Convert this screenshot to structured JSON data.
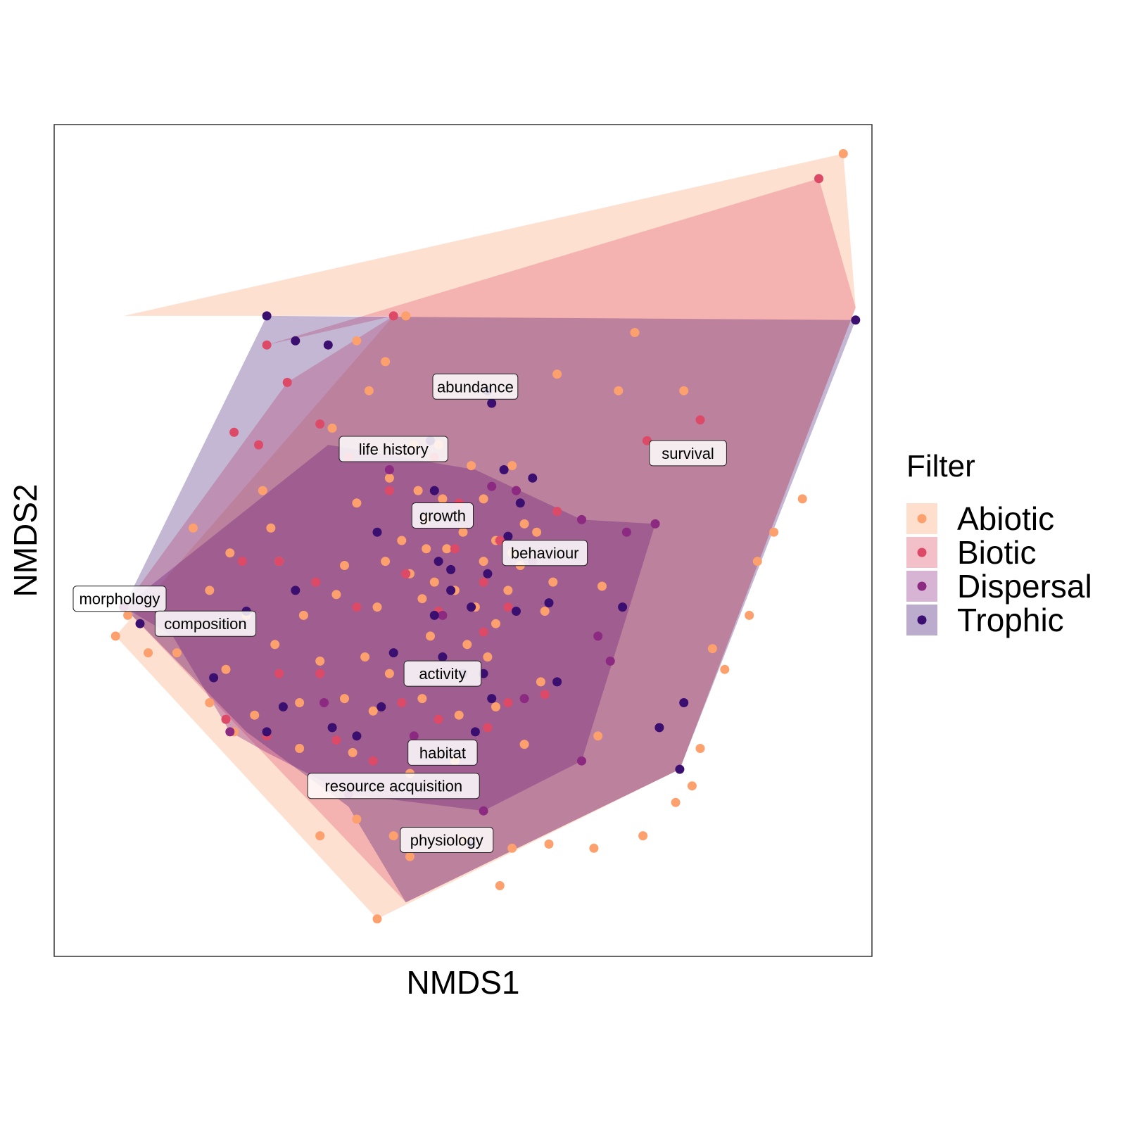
{
  "chart_data": {
    "type": "scatter",
    "xlabel": "NMDS1",
    "ylabel": "NMDS2",
    "xlim": [
      -1.0,
      1.0
    ],
    "ylim": [
      -1.0,
      1.0
    ],
    "axis_ticks_shown": false,
    "grid": false,
    "legend": {
      "title": "Filter",
      "placement": "right",
      "entries": [
        {
          "name": "Abiotic",
          "color": "#FCA06E"
        },
        {
          "name": "Biotic",
          "color": "#DD4A68"
        },
        {
          "name": "Dispersal",
          "color": "#8C2981"
        },
        {
          "name": "Trophic",
          "color": "#3B0F70"
        }
      ]
    },
    "hulls": [
      {
        "group": "Abiotic",
        "fill": "#FCA06E",
        "opacity": 0.32,
        "points": [
          [
            -0.83,
            0.54
          ],
          [
            0.93,
            0.93
          ],
          [
            0.96,
            0.56
          ],
          [
            0.53,
            -0.55
          ],
          [
            -0.21,
            -0.91
          ],
          [
            -0.85,
            -0.23
          ],
          [
            -0.17,
            0.54
          ]
        ]
      },
      {
        "group": "Biotic",
        "fill": "#DD4A68",
        "opacity": 0.3,
        "points": [
          [
            -0.48,
            0.47
          ],
          [
            0.87,
            0.87
          ],
          [
            0.96,
            0.56
          ],
          [
            0.53,
            -0.55
          ],
          [
            -0.14,
            -0.87
          ],
          [
            -0.83,
            -0.16
          ],
          [
            -0.43,
            0.38
          ],
          [
            -0.17,
            0.54
          ]
        ]
      },
      {
        "group": "Dispersal",
        "fill": "#8C2981",
        "opacity": 0.38,
        "points": [
          [
            -0.33,
            0.23
          ],
          [
            0.03,
            0.17
          ],
          [
            0.29,
            0.05
          ],
          [
            0.47,
            0.04
          ],
          [
            0.29,
            -0.53
          ],
          [
            0.05,
            -0.65
          ],
          [
            -0.28,
            -0.61
          ],
          [
            -0.48,
            -0.51
          ],
          [
            -0.57,
            -0.46
          ],
          [
            -0.71,
            -0.23
          ],
          [
            -0.83,
            -0.16
          ]
        ]
      },
      {
        "group": "Trophic",
        "fill": "#3B0F70",
        "opacity": 0.3,
        "points": [
          [
            -0.48,
            0.54
          ],
          [
            0.96,
            0.53
          ],
          [
            0.53,
            -0.55
          ],
          [
            -0.14,
            -0.87
          ],
          [
            -0.28,
            -0.64
          ],
          [
            -0.53,
            -0.46
          ],
          [
            -0.83,
            -0.16
          ]
        ]
      }
    ],
    "series": [
      {
        "name": "Abiotic",
        "color": "#FCA06E",
        "points": [
          [
            0.93,
            0.93
          ],
          [
            -0.21,
            -0.91
          ],
          [
            -0.82,
            -0.18
          ],
          [
            -0.83,
            -0.16
          ],
          [
            -0.85,
            -0.23
          ],
          [
            -0.14,
            0.54
          ],
          [
            0.42,
            0.5
          ],
          [
            -0.26,
            0.48
          ],
          [
            -0.19,
            0.43
          ],
          [
            -0.23,
            0.36
          ],
          [
            -0.32,
            0.27
          ],
          [
            0.23,
            0.4
          ],
          [
            0.38,
            0.36
          ],
          [
            0.54,
            0.36
          ],
          [
            0.12,
            0.18
          ],
          [
            -0.12,
            0.23
          ],
          [
            -0.06,
            0.23
          ],
          [
            -0.26,
            0.09
          ],
          [
            -0.49,
            0.12
          ],
          [
            -0.47,
            0.03
          ],
          [
            -0.18,
            0.15
          ],
          [
            -0.11,
            0.12
          ],
          [
            -0.05,
            0.1
          ],
          [
            0.02,
            0.18
          ],
          [
            0.05,
            0.1
          ],
          [
            0.15,
            0.04
          ],
          [
            -0.66,
            0.03
          ],
          [
            -0.57,
            -0.03
          ],
          [
            -0.45,
            -0.05
          ],
          [
            -0.29,
            -0.06
          ],
          [
            -0.19,
            -0.05
          ],
          [
            -0.13,
            -0.08
          ],
          [
            -0.09,
            -0.02
          ],
          [
            0.05,
            -0.05
          ],
          [
            0.12,
            -0.03
          ],
          [
            0.18,
            0.02
          ],
          [
            -0.62,
            -0.12
          ],
          [
            -0.53,
            -0.18
          ],
          [
            -0.39,
            -0.18
          ],
          [
            -0.31,
            -0.13
          ],
          [
            -0.21,
            -0.16
          ],
          [
            -0.1,
            -0.14
          ],
          [
            -0.02,
            -0.12
          ],
          [
            0.03,
            -0.16
          ],
          [
            0.11,
            -0.12
          ],
          [
            0.22,
            -0.1
          ],
          [
            0.34,
            -0.11
          ],
          [
            -0.7,
            -0.27
          ],
          [
            -0.58,
            -0.31
          ],
          [
            -0.46,
            -0.25
          ],
          [
            -0.35,
            -0.29
          ],
          [
            -0.24,
            -0.28
          ],
          [
            -0.08,
            -0.23
          ],
          [
            0.01,
            -0.25
          ],
          [
            0.08,
            -0.2
          ],
          [
            0.2,
            -0.17
          ],
          [
            -0.77,
            -0.27
          ],
          [
            -0.62,
            -0.39
          ],
          [
            -0.51,
            -0.42
          ],
          [
            -0.4,
            -0.39
          ],
          [
            -0.29,
            -0.38
          ],
          [
            -0.22,
            -0.41
          ],
          [
            -0.1,
            -0.38
          ],
          [
            -0.01,
            -0.42
          ],
          [
            0.08,
            -0.4
          ],
          [
            0.19,
            -0.34
          ],
          [
            -0.56,
            -0.46
          ],
          [
            -0.4,
            -0.5
          ],
          [
            -0.27,
            -0.51
          ],
          [
            -0.13,
            -0.56
          ],
          [
            -0.02,
            -0.53
          ],
          [
            0.15,
            -0.49
          ],
          [
            0.33,
            -0.47
          ],
          [
            -0.26,
            -0.67
          ],
          [
            -0.17,
            -0.71
          ],
          [
            0.0,
            -0.72
          ],
          [
            0.12,
            -0.74
          ],
          [
            0.21,
            -0.73
          ],
          [
            0.32,
            -0.74
          ],
          [
            0.44,
            -0.71
          ],
          [
            0.52,
            -0.63
          ],
          [
            0.56,
            -0.59
          ],
          [
            0.58,
            -0.5
          ],
          [
            0.64,
            -0.31
          ],
          [
            0.61,
            -0.26
          ],
          [
            0.7,
            -0.18
          ],
          [
            0.72,
            -0.05
          ],
          [
            0.76,
            0.02
          ],
          [
            0.83,
            0.1
          ],
          [
            -0.13,
            -0.76
          ],
          [
            0.09,
            -0.83
          ],
          [
            -0.35,
            -0.71
          ],
          [
            -0.09,
            0.05
          ],
          [
            0.0,
            0.02
          ],
          [
            -0.04,
            -0.02
          ],
          [
            0.08,
            0.0
          ],
          [
            -0.15,
            0.0
          ],
          [
            0.14,
            -0.06
          ],
          [
            -0.07,
            -0.1
          ],
          [
            0.06,
            -0.28
          ],
          [
            -0.18,
            -0.32
          ]
        ]
      },
      {
        "name": "Biotic",
        "color": "#DD4A68",
        "points": [
          [
            0.87,
            0.87
          ],
          [
            -0.48,
            0.47
          ],
          [
            -0.43,
            0.38
          ],
          [
            -0.17,
            0.54
          ],
          [
            0.58,
            0.29
          ],
          [
            -0.35,
            0.28
          ],
          [
            -0.56,
            0.26
          ],
          [
            -0.5,
            0.23
          ],
          [
            -0.28,
            0.2
          ],
          [
            -0.18,
            0.12
          ],
          [
            -0.07,
            0.2
          ],
          [
            -0.01,
            0.09
          ],
          [
            0.13,
            0.12
          ],
          [
            0.23,
            0.07
          ],
          [
            -0.45,
            -0.05
          ],
          [
            -0.36,
            -0.1
          ],
          [
            -0.26,
            -0.16
          ],
          [
            -0.14,
            -0.08
          ],
          [
            -0.06,
            -0.17
          ],
          [
            0.05,
            -0.1
          ],
          [
            0.11,
            -0.16
          ],
          [
            0.05,
            -0.22
          ],
          [
            -0.45,
            -0.32
          ],
          [
            -0.35,
            -0.32
          ],
          [
            -0.15,
            -0.39
          ],
          [
            -0.06,
            -0.43
          ],
          [
            0.11,
            -0.39
          ],
          [
            -0.58,
            -0.43
          ],
          [
            -0.48,
            -0.47
          ],
          [
            -0.31,
            -0.48
          ],
          [
            -0.22,
            -0.53
          ],
          [
            0.06,
            -0.45
          ],
          [
            0.45,
            0.24
          ],
          [
            0.09,
            0.0
          ],
          [
            -0.02,
            -0.02
          ],
          [
            0.2,
            -0.37
          ],
          [
            -0.54,
            -0.05
          ]
        ]
      },
      {
        "name": "Dispersal",
        "color": "#8C2981",
        "points": [
          [
            0.29,
            0.05
          ],
          [
            0.47,
            0.04
          ],
          [
            0.29,
            -0.53
          ],
          [
            0.05,
            -0.65
          ],
          [
            -0.83,
            -0.16
          ],
          [
            -0.28,
            -0.61
          ],
          [
            -0.57,
            -0.46
          ],
          [
            0.07,
            0.13
          ],
          [
            0.13,
            0.12
          ],
          [
            -0.18,
            0.17
          ],
          [
            -0.05,
            -0.18
          ],
          [
            0.17,
            -0.05
          ],
          [
            0.15,
            -0.38
          ],
          [
            0.36,
            -0.29
          ],
          [
            -0.12,
            -0.47
          ],
          [
            -0.34,
            -0.39
          ],
          [
            0.4,
            0.02
          ],
          [
            0.33,
            -0.23
          ]
        ]
      },
      {
        "name": "Trophic",
        "color": "#3B0F70",
        "points": [
          [
            -0.48,
            0.54
          ],
          [
            0.96,
            0.53
          ],
          [
            0.53,
            -0.55
          ],
          [
            -0.41,
            0.48
          ],
          [
            -0.33,
            0.47
          ],
          [
            0.06,
            0.36
          ],
          [
            0.07,
            0.33
          ],
          [
            -0.08,
            0.24
          ],
          [
            0.1,
            0.17
          ],
          [
            0.17,
            0.15
          ],
          [
            -0.07,
            0.12
          ],
          [
            0.11,
            0.01
          ],
          [
            0.14,
            0.09
          ],
          [
            -0.21,
            0.02
          ],
          [
            -0.06,
            -0.05
          ],
          [
            -0.03,
            -0.07
          ],
          [
            0.06,
            -0.08
          ],
          [
            -0.03,
            -0.12
          ],
          [
            -0.07,
            -0.18
          ],
          [
            0.13,
            -0.17
          ],
          [
            -0.17,
            -0.27
          ],
          [
            -0.05,
            -0.28
          ],
          [
            0.0,
            -0.32
          ],
          [
            0.05,
            -0.32
          ],
          [
            -0.2,
            -0.4
          ],
          [
            0.07,
            -0.38
          ],
          [
            -0.26,
            -0.47
          ],
          [
            0.03,
            -0.46
          ],
          [
            -0.44,
            -0.4
          ],
          [
            0.23,
            -0.34
          ],
          [
            -0.48,
            -0.46
          ],
          [
            -0.61,
            -0.33
          ],
          [
            -0.53,
            -0.17
          ],
          [
            -0.79,
            -0.2
          ],
          [
            -0.41,
            -0.12
          ],
          [
            0.21,
            -0.15
          ],
          [
            0.39,
            -0.16
          ],
          [
            0.48,
            -0.45
          ],
          [
            0.54,
            -0.39
          ],
          [
            0.02,
            -0.73
          ],
          [
            -0.32,
            -0.45
          ],
          [
            0.02,
            -0.16
          ]
        ]
      }
    ],
    "labels": [
      {
        "text": "abundance",
        "x": 0.03,
        "y": 0.37
      },
      {
        "text": "life history",
        "x": -0.17,
        "y": 0.22
      },
      {
        "text": "survival",
        "x": 0.55,
        "y": 0.21
      },
      {
        "text": "growth",
        "x": -0.05,
        "y": 0.06
      },
      {
        "text": "behaviour",
        "x": 0.2,
        "y": -0.03
      },
      {
        "text": "morphology",
        "x": -0.84,
        "y": -0.14
      },
      {
        "text": "composition",
        "x": -0.63,
        "y": -0.2
      },
      {
        "text": "activity",
        "x": -0.05,
        "y": -0.32
      },
      {
        "text": "habitat",
        "x": -0.05,
        "y": -0.51
      },
      {
        "text": "resource acquisition",
        "x": -0.17,
        "y": -0.59
      },
      {
        "text": "physiology",
        "x": -0.04,
        "y": -0.72
      }
    ]
  }
}
